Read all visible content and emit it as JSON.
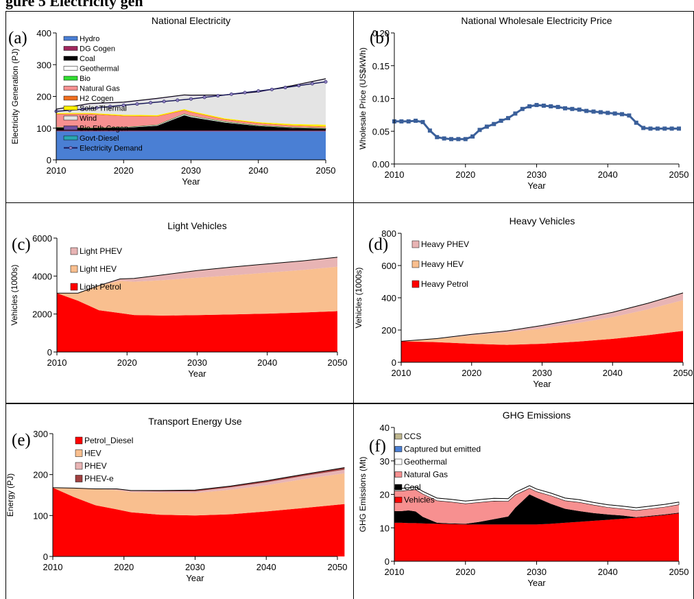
{
  "page_title": "gure 5 Electricity gen",
  "chart_data": [
    {
      "id": "a",
      "panel_letter": "(a)",
      "type": "area",
      "title": "National Electricity",
      "xlabel": "Year",
      "ylabel": "Electricity Generation (PJ)",
      "xlim": [
        2010,
        2050
      ],
      "ylim": [
        0,
        400
      ],
      "xticks": [
        2010,
        2020,
        2030,
        2040,
        2050
      ],
      "yticks": [
        0,
        100,
        200,
        300,
        400
      ],
      "x": [
        2010,
        2015,
        2020,
        2025,
        2029,
        2030,
        2035,
        2040,
        2045,
        2050
      ],
      "series": [
        {
          "name": "Hydro",
          "color": "#4a7fd4",
          "values": [
            90,
            90,
            90,
            90,
            90,
            90,
            90,
            90,
            90,
            90
          ]
        },
        {
          "name": "DG Cogen",
          "color": "#a0275d",
          "values": [
            2,
            2,
            2,
            2,
            2,
            2,
            2,
            2,
            2,
            2
          ]
        },
        {
          "name": "Coal",
          "color": "#000000",
          "values": [
            10,
            8,
            8,
            15,
            48,
            42,
            25,
            14,
            8,
            5
          ]
        },
        {
          "name": "Geothermal",
          "color": "#ffffff",
          "values": [
            0,
            0,
            2,
            3,
            4,
            4,
            3,
            2,
            2,
            2
          ]
        },
        {
          "name": "Bio",
          "color": "#33dd33",
          "values": [
            1,
            1,
            1,
            1,
            1,
            1,
            1,
            1,
            1,
            1
          ]
        },
        {
          "name": "Natural Gas",
          "color": "#f79090",
          "values": [
            40,
            42,
            34,
            25,
            10,
            10,
            5,
            5,
            4,
            3
          ]
        },
        {
          "name": "H2 Cogen",
          "color": "#f07020",
          "values": [
            2,
            2,
            2,
            2,
            2,
            2,
            2,
            2,
            2,
            2
          ]
        },
        {
          "name": "Solar Thermal",
          "color": "#ffee00",
          "values": [
            3,
            3,
            3,
            3,
            3,
            3,
            3,
            3,
            4,
            6
          ]
        },
        {
          "name": "Wind",
          "color": "#e4e4e4",
          "values": [
            10,
            28,
            38,
            51,
            43,
            48,
            72,
            94,
            119,
            143
          ]
        },
        {
          "name": "Bio Eth Cogen",
          "color": "#7050a0",
          "values": [
            2,
            2,
            2,
            2,
            2,
            2,
            2,
            2,
            2,
            2
          ]
        },
        {
          "name": "Govt-Diesel",
          "color": "#2aa7b0",
          "values": [
            0,
            0,
            0,
            0,
            0,
            0,
            0,
            0,
            0,
            0
          ]
        }
      ],
      "line_series": {
        "name": "Electricity Demand",
        "color": "#1a1a5a",
        "marker_color": "#9080c0",
        "x": [
          2010,
          2012,
          2014,
          2016,
          2018,
          2020,
          2022,
          2024,
          2026,
          2028,
          2030,
          2032,
          2034,
          2036,
          2038,
          2040,
          2042,
          2044,
          2046,
          2048,
          2050
        ],
        "values": [
          153,
          156,
          160,
          164,
          168,
          172,
          176,
          180,
          184,
          188,
          192,
          197,
          202,
          207,
          212,
          217,
          222,
          228,
          234,
          240,
          246
        ]
      },
      "legend_order": [
        "Hydro",
        "DG Cogen",
        "Coal",
        "Geothermal",
        "Bio",
        "Natural Gas",
        "H2 Cogen",
        "Solar Thermal",
        "Wind",
        "Bio Eth Cogen",
        "Govt-Diesel",
        "Electricity Demand"
      ],
      "legend_placement": "top-left"
    },
    {
      "id": "b",
      "panel_letter": "(b)",
      "type": "line",
      "title": "National Wholesale Electricity Price",
      "xlabel": "Year",
      "ylabel": "Wholesale Price (US$/kWh)",
      "xlim": [
        2010,
        2050
      ],
      "ylim": [
        0,
        0.2
      ],
      "xticks": [
        2010,
        2020,
        2030,
        2040,
        2050
      ],
      "yticks": [
        "0.00",
        "0.05",
        "0.10",
        "0.15",
        "0.20"
      ],
      "color": "#3a5f9a",
      "x": [
        2010,
        2011,
        2012,
        2013,
        2014,
        2015,
        2016,
        2017,
        2018,
        2019,
        2020,
        2021,
        2022,
        2023,
        2024,
        2025,
        2026,
        2027,
        2028,
        2029,
        2030,
        2031,
        2032,
        2033,
        2034,
        2035,
        2036,
        2037,
        2038,
        2039,
        2040,
        2041,
        2042,
        2043,
        2044,
        2045,
        2046,
        2047,
        2048,
        2049,
        2050
      ],
      "values": [
        0.065,
        0.065,
        0.065,
        0.066,
        0.064,
        0.051,
        0.041,
        0.039,
        0.038,
        0.038,
        0.038,
        0.042,
        0.052,
        0.057,
        0.061,
        0.066,
        0.07,
        0.077,
        0.084,
        0.088,
        0.09,
        0.089,
        0.088,
        0.087,
        0.085,
        0.084,
        0.083,
        0.081,
        0.08,
        0.079,
        0.078,
        0.077,
        0.076,
        0.074,
        0.063,
        0.055,
        0.054,
        0.054,
        0.054,
        0.054,
        0.054
      ],
      "legend_placement": "none"
    },
    {
      "id": "c",
      "panel_letter": "(c)",
      "type": "area",
      "title": "Light Vehicles",
      "xlabel": "Year",
      "ylabel": "Vehicles (1000s)",
      "xlim": [
        2010,
        2050
      ],
      "ylim": [
        0,
        6000
      ],
      "xticks": [
        2010,
        2020,
        2030,
        2040,
        2050
      ],
      "yticks": [
        0,
        2000,
        4000,
        6000
      ],
      "x": [
        2010,
        2013,
        2016,
        2019,
        2021,
        2025,
        2030,
        2035,
        2040,
        2045,
        2050
      ],
      "series": [
        {
          "name": "Light Petrol",
          "color": "#ff0000",
          "values": [
            3100,
            2700,
            2200,
            2050,
            1950,
            1920,
            1940,
            1980,
            2020,
            2080,
            2150
          ]
        },
        {
          "name": "Light HEV",
          "color": "#f9bf8f",
          "values": [
            0,
            400,
            1300,
            1700,
            1750,
            1860,
            1970,
            2060,
            2160,
            2240,
            2340
          ]
        },
        {
          "name": "Light PHEV",
          "color": "#e8b4b4",
          "values": [
            0,
            0,
            0,
            100,
            180,
            280,
            380,
            440,
            460,
            480,
            500
          ]
        }
      ],
      "legend_order": [
        "Light PHEV",
        "Light HEV",
        "Light Petrol"
      ],
      "legend_placement": "top-left"
    },
    {
      "id": "d",
      "panel_letter": "(d)",
      "type": "area",
      "title": "Heavy Vehicles",
      "xlabel": "Year",
      "ylabel": "Vehicles (1000s)",
      "xlim": [
        2010,
        2050
      ],
      "ylim": [
        0,
        800
      ],
      "xticks": [
        2010,
        2020,
        2030,
        2040,
        2050
      ],
      "yticks": [
        0,
        200,
        400,
        600,
        800
      ],
      "x": [
        2010,
        2015,
        2020,
        2025,
        2030,
        2035,
        2040,
        2045,
        2050
      ],
      "series": [
        {
          "name": "Heavy Petrol",
          "color": "#ff0000",
          "values": [
            130,
            125,
            115,
            108,
            115,
            128,
            145,
            168,
            195
          ]
        },
        {
          "name": "Heavy HEV",
          "color": "#f9bf8f",
          "values": [
            0,
            20,
            52,
            77,
            95,
            115,
            135,
            160,
            190
          ]
        },
        {
          "name": "Heavy PHEV",
          "color": "#e8b4b4",
          "values": [
            0,
            2,
            6,
            10,
            18,
            24,
            30,
            38,
            45
          ]
        }
      ],
      "legend_order": [
        "Heavy PHEV",
        "Heavy HEV",
        "Heavy Petrol"
      ],
      "legend_placement": "top-left"
    },
    {
      "id": "e",
      "panel_letter": "(e)",
      "type": "area",
      "title": "Transport Energy Use",
      "xlabel": "Year",
      "ylabel": "Energy (PJ)",
      "xlim": [
        2010,
        2050
      ],
      "ylim": [
        0,
        300
      ],
      "xticks": [
        2010,
        2020,
        2030,
        2040,
        2050
      ],
      "yticks": [
        0,
        100,
        200,
        300
      ],
      "x": [
        2010,
        2013,
        2016,
        2019,
        2021,
        2025,
        2030,
        2035,
        2040,
        2045,
        2051
      ],
      "series": [
        {
          "name": "Petrol_Diesel",
          "color": "#ff0000",
          "values": [
            168,
            145,
            125,
            115,
            108,
            102,
            100,
            103,
            110,
            118,
            128
          ]
        },
        {
          "name": "HEV",
          "color": "#f9bf8f",
          "values": [
            0,
            22,
            40,
            47,
            49,
            54,
            55,
            60,
            64,
            70,
            75
          ]
        },
        {
          "name": "PHEV",
          "color": "#e8b4b4",
          "values": [
            0,
            0,
            0,
            2,
            3,
            3,
            4,
            6,
            7,
            8,
            9
          ]
        },
        {
          "name": "PHEV-e",
          "color": "#a04040",
          "values": [
            0,
            0,
            0,
            1,
            1,
            2,
            3,
            3,
            4,
            4,
            5
          ]
        }
      ],
      "legend_order": [
        "Petrol_Diesel",
        "HEV",
        "PHEV",
        "PHEV-e"
      ],
      "legend_placement": "top-left"
    },
    {
      "id": "f",
      "panel_letter": "(f)",
      "type": "area",
      "title": "GHG Emissions",
      "xlabel": "Year",
      "ylabel": "GHG Emissions (Mt)",
      "xlim": [
        2010,
        2050
      ],
      "ylim": [
        0,
        40
      ],
      "xticks": [
        2010,
        2020,
        2030,
        2040,
        2050
      ],
      "yticks": [
        0,
        10,
        20,
        30,
        40
      ],
      "x": [
        2010,
        2011,
        2012,
        2013,
        2014,
        2016,
        2018,
        2020,
        2022,
        2024,
        2026,
        2027,
        2029,
        2030,
        2032,
        2034,
        2036,
        2038,
        2040,
        2042,
        2044,
        2046,
        2048,
        2050
      ],
      "series": [
        {
          "name": "Vehicles",
          "color": "#ff0000",
          "values": [
            11.5,
            11.5,
            11.4,
            11.4,
            11.3,
            11.2,
            11.1,
            11.0,
            11.0,
            11.0,
            11.0,
            11.0,
            11.0,
            11.0,
            11.2,
            11.5,
            11.8,
            12.1,
            12.4,
            12.7,
            13.0,
            13.4,
            13.8,
            14.3
          ]
        },
        {
          "name": "Coal",
          "color": "#000000",
          "values": [
            3.5,
            3.5,
            3.8,
            3.5,
            2.0,
            0.3,
            0.2,
            0.2,
            0.8,
            1.6,
            2.4,
            5.0,
            9.0,
            8.0,
            6.0,
            4.2,
            3.2,
            2.3,
            1.6,
            1.0,
            0.2,
            0.2,
            0.2,
            0.2
          ]
        },
        {
          "name": "Natural Gas",
          "color": "#f79090",
          "values": [
            6.0,
            6.0,
            6.0,
            6.5,
            6.8,
            6.6,
            6.4,
            6.0,
            5.8,
            5.4,
            4.5,
            3.8,
            1.8,
            1.8,
            2.4,
            2.4,
            2.6,
            2.4,
            2.1,
            2.0,
            2.0,
            2.1,
            2.2,
            2.4
          ]
        },
        {
          "name": "Geothermal",
          "color": "#ffffff",
          "values": [
            0.8,
            0.8,
            0.8,
            0.8,
            0.8,
            0.8,
            0.8,
            0.8,
            0.8,
            0.8,
            0.8,
            0.8,
            0.8,
            0.8,
            0.8,
            0.8,
            0.8,
            0.8,
            0.8,
            0.8,
            0.8,
            0.8,
            0.8,
            0.8
          ]
        },
        {
          "name": "Captured but emitted",
          "color": "#4a7fd4",
          "values": [
            0,
            0,
            0,
            0,
            0,
            0,
            0,
            0,
            0,
            0,
            0,
            0,
            0,
            0,
            0,
            0,
            0,
            0,
            0,
            0,
            0,
            0,
            0,
            0
          ]
        },
        {
          "name": "CCS",
          "color": "#c0b890",
          "values": [
            0,
            0,
            0,
            0,
            0,
            0,
            0,
            0,
            0,
            0,
            0,
            0,
            0,
            0,
            0,
            0,
            0,
            0,
            0,
            0,
            0,
            0,
            0,
            0
          ]
        }
      ],
      "legend_order": [
        "CCS",
        "Captured but emitted",
        "Geothermal",
        "Natural Gas",
        "Coal",
        "Vehicles"
      ],
      "legend_placement": "top-left"
    }
  ]
}
